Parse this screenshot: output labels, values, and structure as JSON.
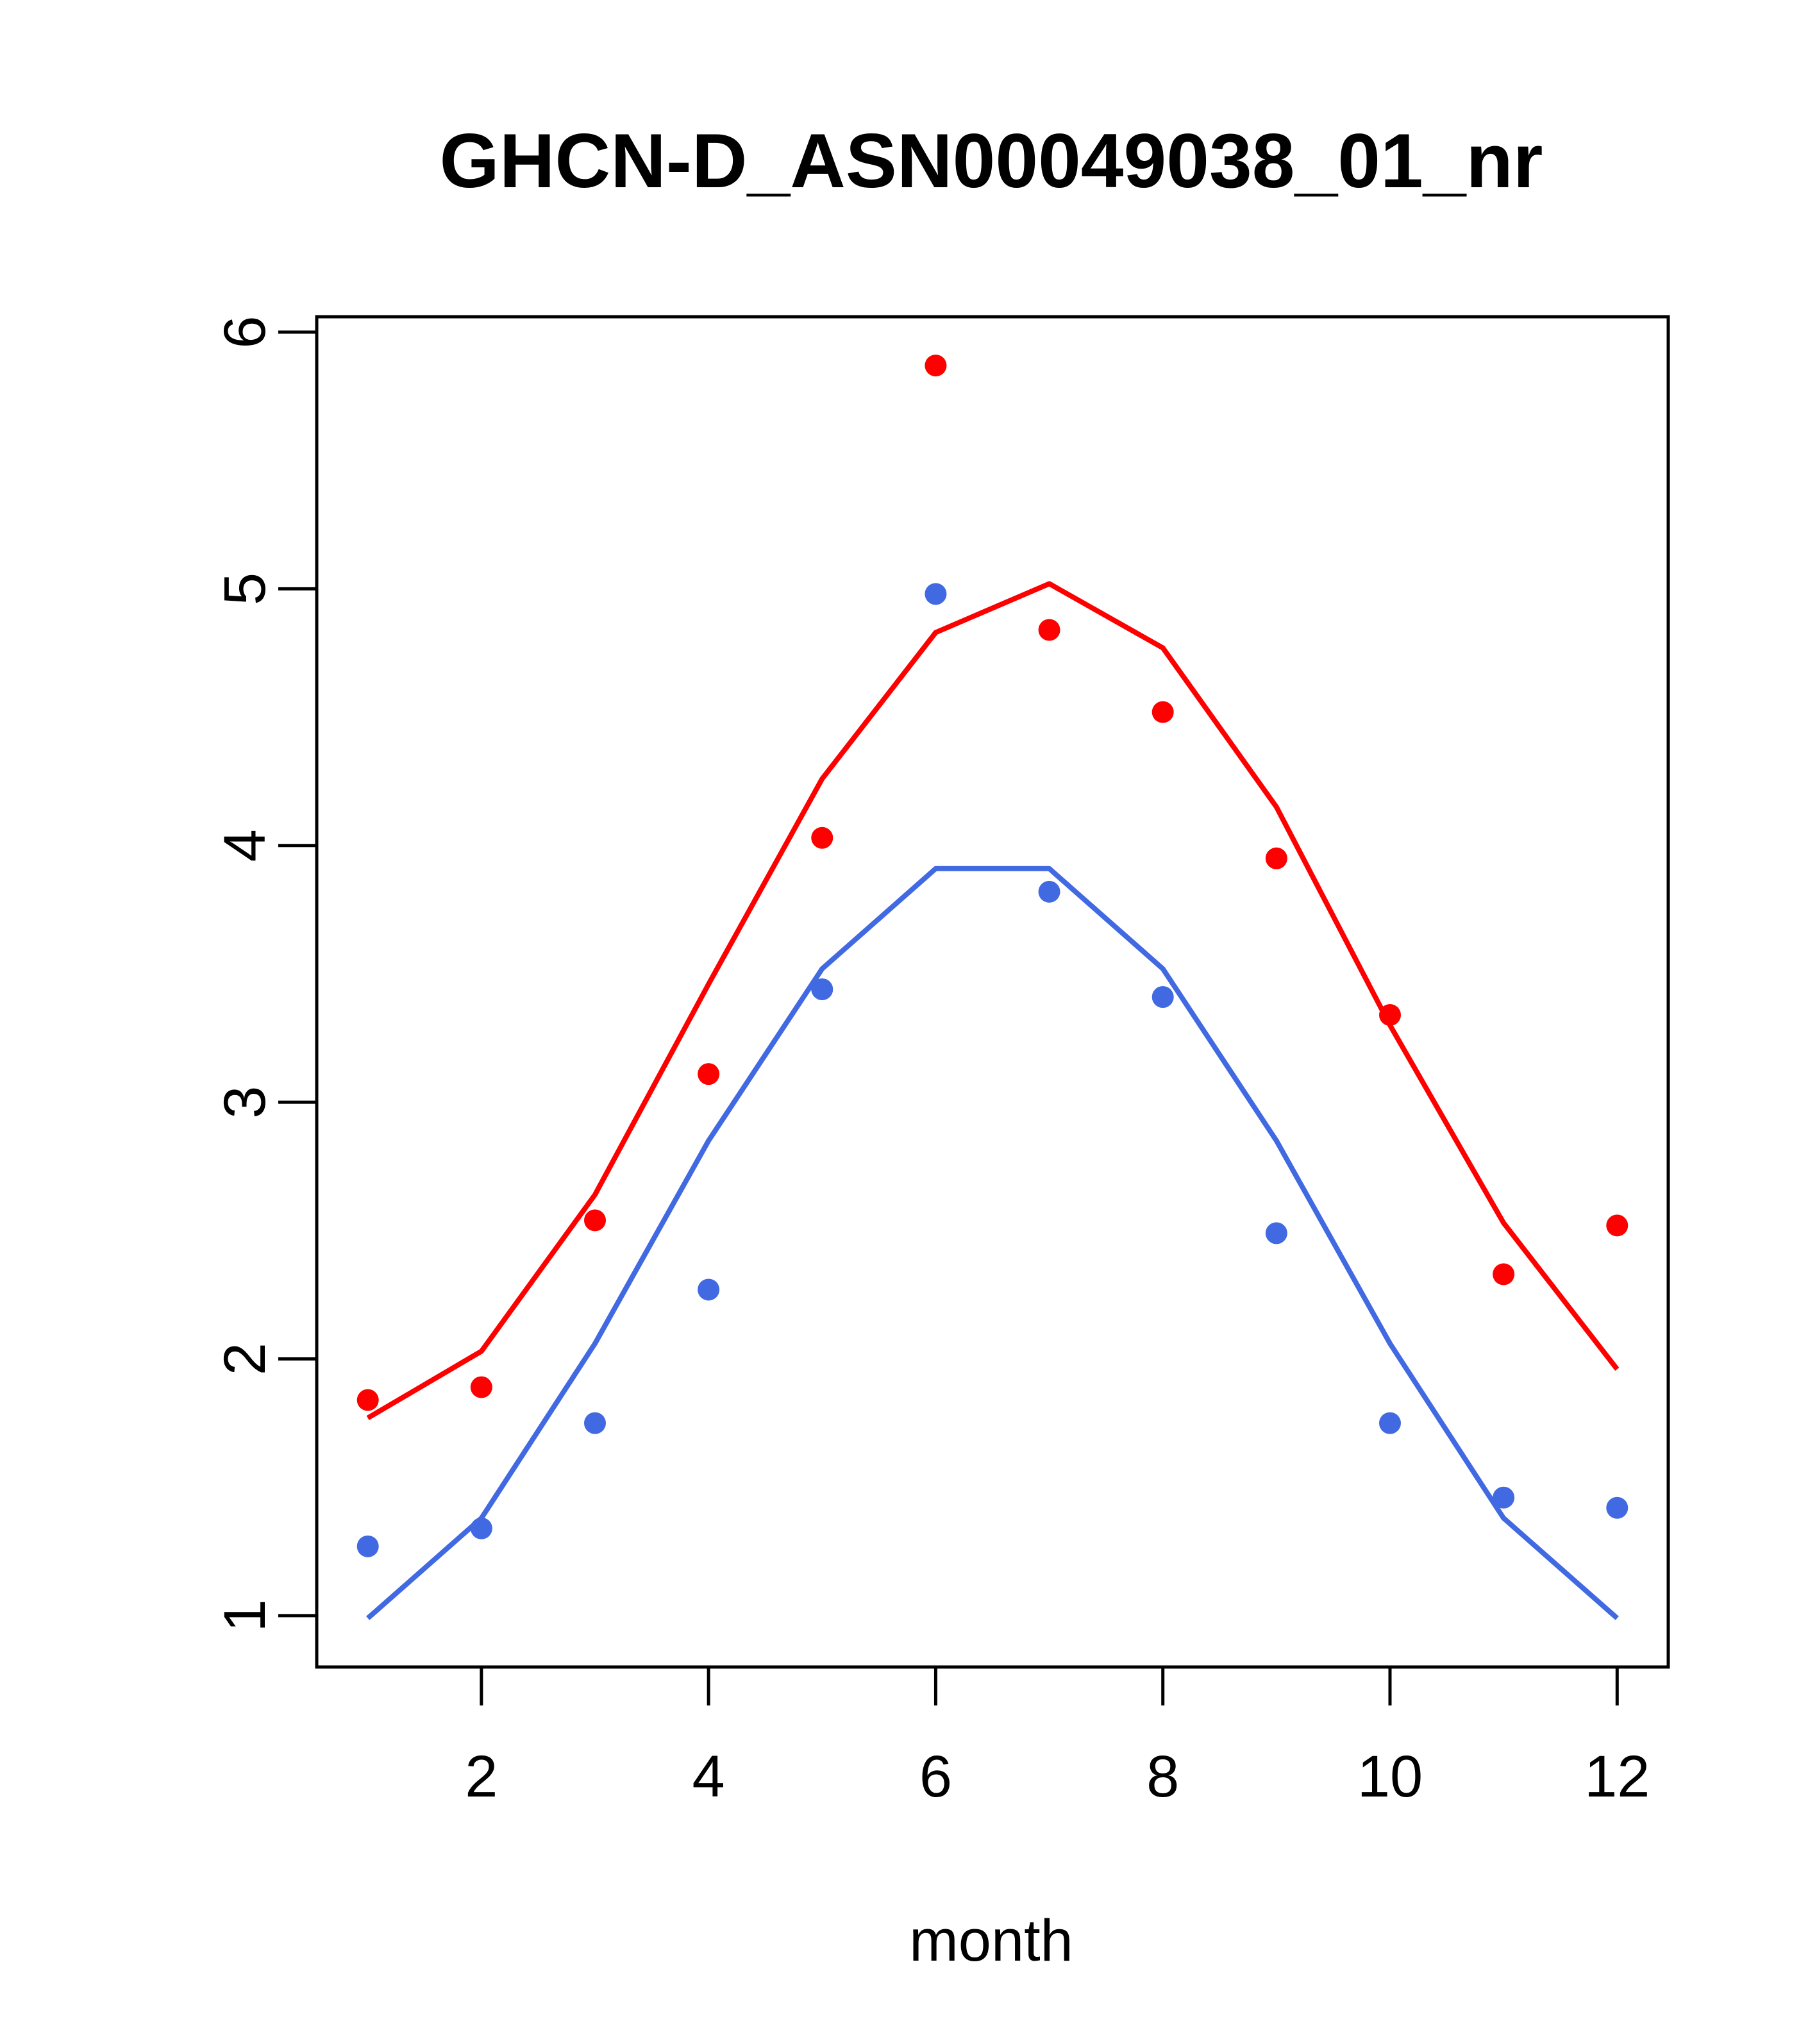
{
  "chart_data": {
    "type": "line",
    "title": "GHCN-D_ASN00049038_01_nr",
    "xlabel": "month",
    "ylabel": "",
    "xlim": [
      0.55,
      12.45
    ],
    "ylim": [
      0.8,
      6.06
    ],
    "x_ticks": [
      2,
      4,
      6,
      8,
      10,
      12
    ],
    "y_ticks": [
      1,
      2,
      3,
      4,
      5,
      6
    ],
    "grid": false,
    "legend": "none",
    "series": [
      {
        "color": "#ff0000",
        "x": [
          1,
          2,
          3,
          4,
          5,
          6,
          7,
          8,
          9,
          10,
          11,
          12
        ],
        "points": [
          1.84,
          1.89,
          2.54,
          3.11,
          4.03,
          5.87,
          4.84,
          4.52,
          3.95,
          3.34,
          2.33,
          2.52
        ],
        "line": [
          1.77,
          2.03,
          2.64,
          3.46,
          4.26,
          4.83,
          5.02,
          4.77,
          4.15,
          3.3,
          2.53,
          1.96
        ]
      },
      {
        "color": "#4169e1",
        "x": [
          1,
          2,
          3,
          4,
          5,
          6,
          7,
          8,
          9,
          10,
          11,
          12
        ],
        "points": [
          1.27,
          1.34,
          1.75,
          2.27,
          3.44,
          4.98,
          3.82,
          3.41,
          2.49,
          1.75,
          1.46,
          1.42
        ],
        "line": [
          0.99,
          1.38,
          2.06,
          2.85,
          3.52,
          3.91,
          3.91,
          3.52,
          2.85,
          2.06,
          1.38,
          0.99
        ]
      }
    ]
  }
}
